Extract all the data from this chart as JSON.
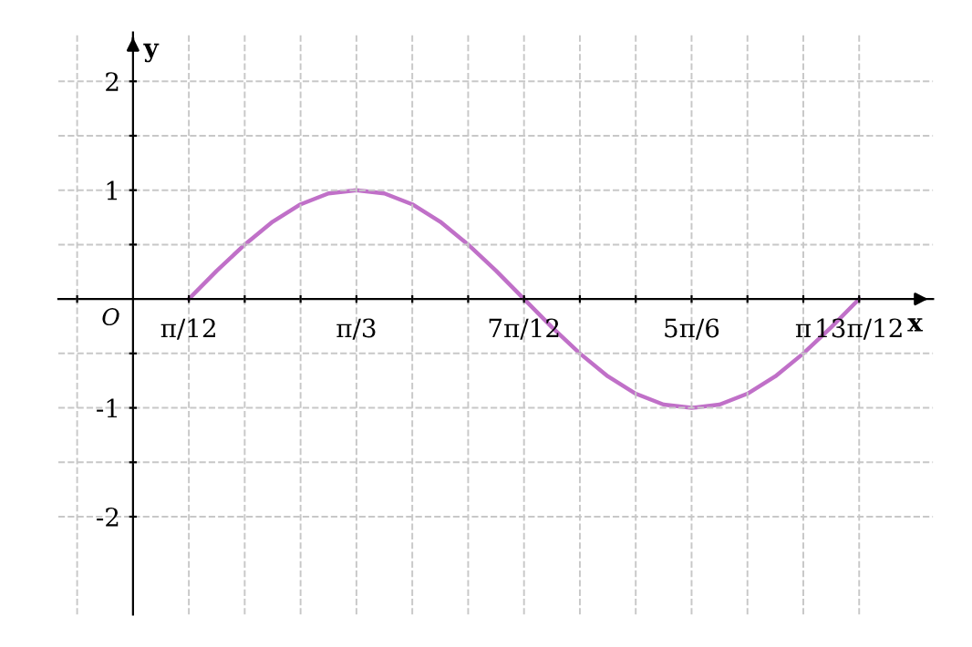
{
  "chart_data": {
    "type": "line",
    "xlabel": "x",
    "ylabel": "y",
    "annotations": [
      "O"
    ],
    "x": [
      0.2618,
      0.3927,
      0.5236,
      0.6545,
      0.7854,
      0.9163,
      1.0472,
      1.1781,
      1.309,
      1.4399,
      1.5708,
      1.7017,
      1.8326,
      1.9635,
      2.0944,
      2.2253,
      2.3562,
      2.4871,
      2.618,
      2.7489,
      2.8798,
      3.0107,
      3.1416,
      3.2725,
      3.4034
    ],
    "series": [
      {
        "color": "#c070c8",
        "values": [
          0,
          0.26,
          0.5,
          0.71,
          0.87,
          0.97,
          1,
          0.97,
          0.87,
          0.71,
          0.5,
          0.26,
          0,
          -0.26,
          -0.5,
          -0.71,
          -0.87,
          -0.97,
          -1,
          -0.97,
          -0.87,
          -0.71,
          -0.5,
          -0.26,
          0
        ]
      }
    ],
    "xlim": [
      -0.35,
      3.75
    ],
    "ylim": [
      -2.9,
      2.45
    ],
    "xticks": [
      {
        "value": -0.2618,
        "label": null
      },
      {
        "value": 0.2618,
        "label": "π/12"
      },
      {
        "value": 0.5236,
        "label": null
      },
      {
        "value": 0.7854,
        "label": null
      },
      {
        "value": 1.0472,
        "label": "π/3"
      },
      {
        "value": 1.309,
        "label": null
      },
      {
        "value": 1.5708,
        "label": null
      },
      {
        "value": 1.8326,
        "label": "7π/12"
      },
      {
        "value": 2.0944,
        "label": null
      },
      {
        "value": 2.3562,
        "label": null
      },
      {
        "value": 2.618,
        "label": "5π/6"
      },
      {
        "value": 2.8798,
        "label": null
      },
      {
        "value": 3.1416,
        "label": "π"
      },
      {
        "value": 3.4034,
        "label": "13π/12"
      }
    ],
    "yticks": [
      -2,
      {
        "value": -1.5,
        "label": null
      },
      -1,
      {
        "value": -0.5,
        "label": null
      },
      {
        "value": 0.5,
        "label": null
      },
      1,
      {
        "value": 1.5,
        "label": null
      },
      2
    ],
    "grid": true,
    "marker": "none",
    "line_style": "solid"
  }
}
